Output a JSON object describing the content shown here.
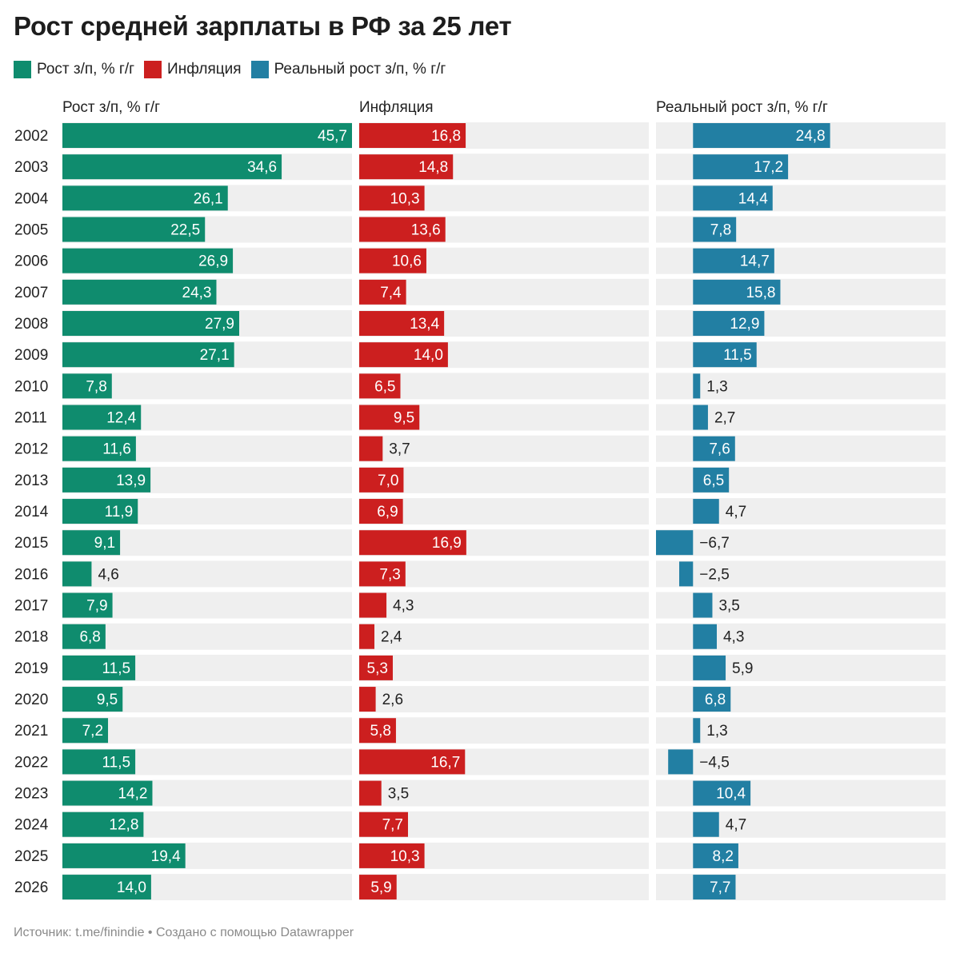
{
  "title": "Рост средней зарплаты в РФ за 25 лет",
  "legend": [
    {
      "label": "Рост з/п, % г/г",
      "color": "#0f8c6e"
    },
    {
      "label": "Инфляция",
      "color": "#cc1f1f"
    },
    {
      "label": "Реальный рост з/п, % г/г",
      "color": "#227fa3"
    }
  ],
  "footer": "Источник: t.me/finindie • Создано с помощью Datawrapper",
  "chart_data": {
    "type": "bar",
    "orientation": "horizontal",
    "categories": [
      "2002",
      "2003",
      "2004",
      "2005",
      "2006",
      "2007",
      "2008",
      "2009",
      "2010",
      "2011",
      "2012",
      "2013",
      "2014",
      "2015",
      "2016",
      "2017",
      "2018",
      "2019",
      "2020",
      "2021",
      "2022",
      "2023",
      "2024",
      "2025",
      "2026"
    ],
    "series": [
      {
        "name": "Рост з/п, % г/г",
        "color": "#0f8c6e",
        "xlim": [
          0,
          45.7
        ],
        "values": [
          45.7,
          34.6,
          26.1,
          22.5,
          26.9,
          24.3,
          27.9,
          27.1,
          7.8,
          12.4,
          11.6,
          13.9,
          11.9,
          9.1,
          4.6,
          7.9,
          6.8,
          11.5,
          9.5,
          7.2,
          11.5,
          14.2,
          12.8,
          19.4,
          14.0
        ],
        "labels": [
          "45,7",
          "34,6",
          "26,1",
          "22,5",
          "26,9",
          "24,3",
          "27,9",
          "27,1",
          "7,8",
          "12,4",
          "11,6",
          "13,9",
          "11,9",
          "9,1",
          "4,6",
          "7,9",
          "6,8",
          "11,5",
          "9,5",
          "7,2",
          "11,5",
          "14,2",
          "12,8",
          "19,4",
          "14,0"
        ]
      },
      {
        "name": "Инфляция",
        "color": "#cc1f1f",
        "xlim": [
          0,
          45.7
        ],
        "values": [
          16.8,
          14.8,
          10.3,
          13.6,
          10.6,
          7.4,
          13.4,
          14.0,
          6.5,
          9.5,
          3.7,
          7.0,
          6.9,
          16.9,
          7.3,
          4.3,
          2.4,
          5.3,
          2.6,
          5.8,
          16.7,
          3.5,
          7.7,
          10.3,
          5.9
        ],
        "labels": [
          "16,8",
          "14,8",
          "10,3",
          "13,6",
          "10,6",
          "7,4",
          "13,4",
          "14,0",
          "6,5",
          "9,5",
          "3,7",
          "7,0",
          "6,9",
          "16,9",
          "7,3",
          "4,3",
          "2,4",
          "5,3",
          "2,6",
          "5,8",
          "16,7",
          "3,5",
          "7,7",
          "10,3",
          "5,9"
        ]
      },
      {
        "name": "Реальный рост з/п, % г/г",
        "color": "#227fa3",
        "xlim": [
          -6.7,
          45.7
        ],
        "values": [
          24.8,
          17.2,
          14.4,
          7.8,
          14.7,
          15.8,
          12.9,
          11.5,
          1.3,
          2.7,
          7.6,
          6.5,
          4.7,
          -6.7,
          -2.5,
          3.5,
          4.3,
          5.9,
          6.8,
          1.3,
          -4.5,
          10.4,
          4.7,
          8.2,
          7.7
        ],
        "labels": [
          "24,8",
          "17,2",
          "14,4",
          "7,8",
          "14,7",
          "15,8",
          "12,9",
          "11,5",
          "1,3",
          "2,7",
          "7,6",
          "6,5",
          "4,7",
          "−6,7",
          "−2,5",
          "3,5",
          "4,3",
          "5,9",
          "6,8",
          "1,3",
          "−4,5",
          "10,4",
          "4,7",
          "8,2",
          "7,7"
        ]
      }
    ]
  }
}
